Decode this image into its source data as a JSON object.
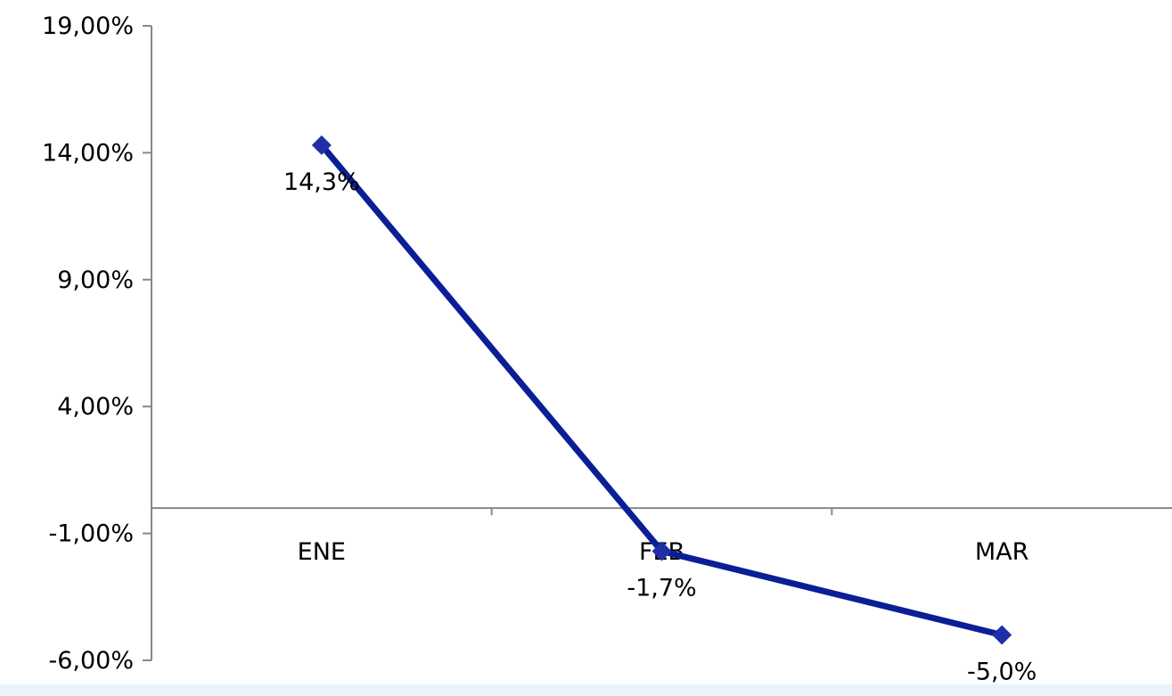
{
  "chart_data": {
    "type": "line",
    "categories": [
      "ENE",
      "FEB",
      "MAR"
    ],
    "series": [
      {
        "values": [
          14.3,
          -1.7,
          -5.0
        ],
        "data_labels": [
          "14,3%",
          "-1,7%",
          "-5,0%"
        ]
      }
    ],
    "y_ticks": [
      19,
      14,
      9,
      4,
      -1,
      -6
    ],
    "y_tick_labels": [
      "19,00%",
      "14,00%",
      "9,00%",
      "4,00%",
      "-1,00%",
      "-6,00%"
    ],
    "ylim": [
      -6,
      19
    ],
    "grid": false,
    "legend": "none",
    "colors": {
      "line": "#0a1f96",
      "marker": "#1f2fa8",
      "axis": "#888888",
      "background_strip": "#eaf3fb"
    }
  }
}
